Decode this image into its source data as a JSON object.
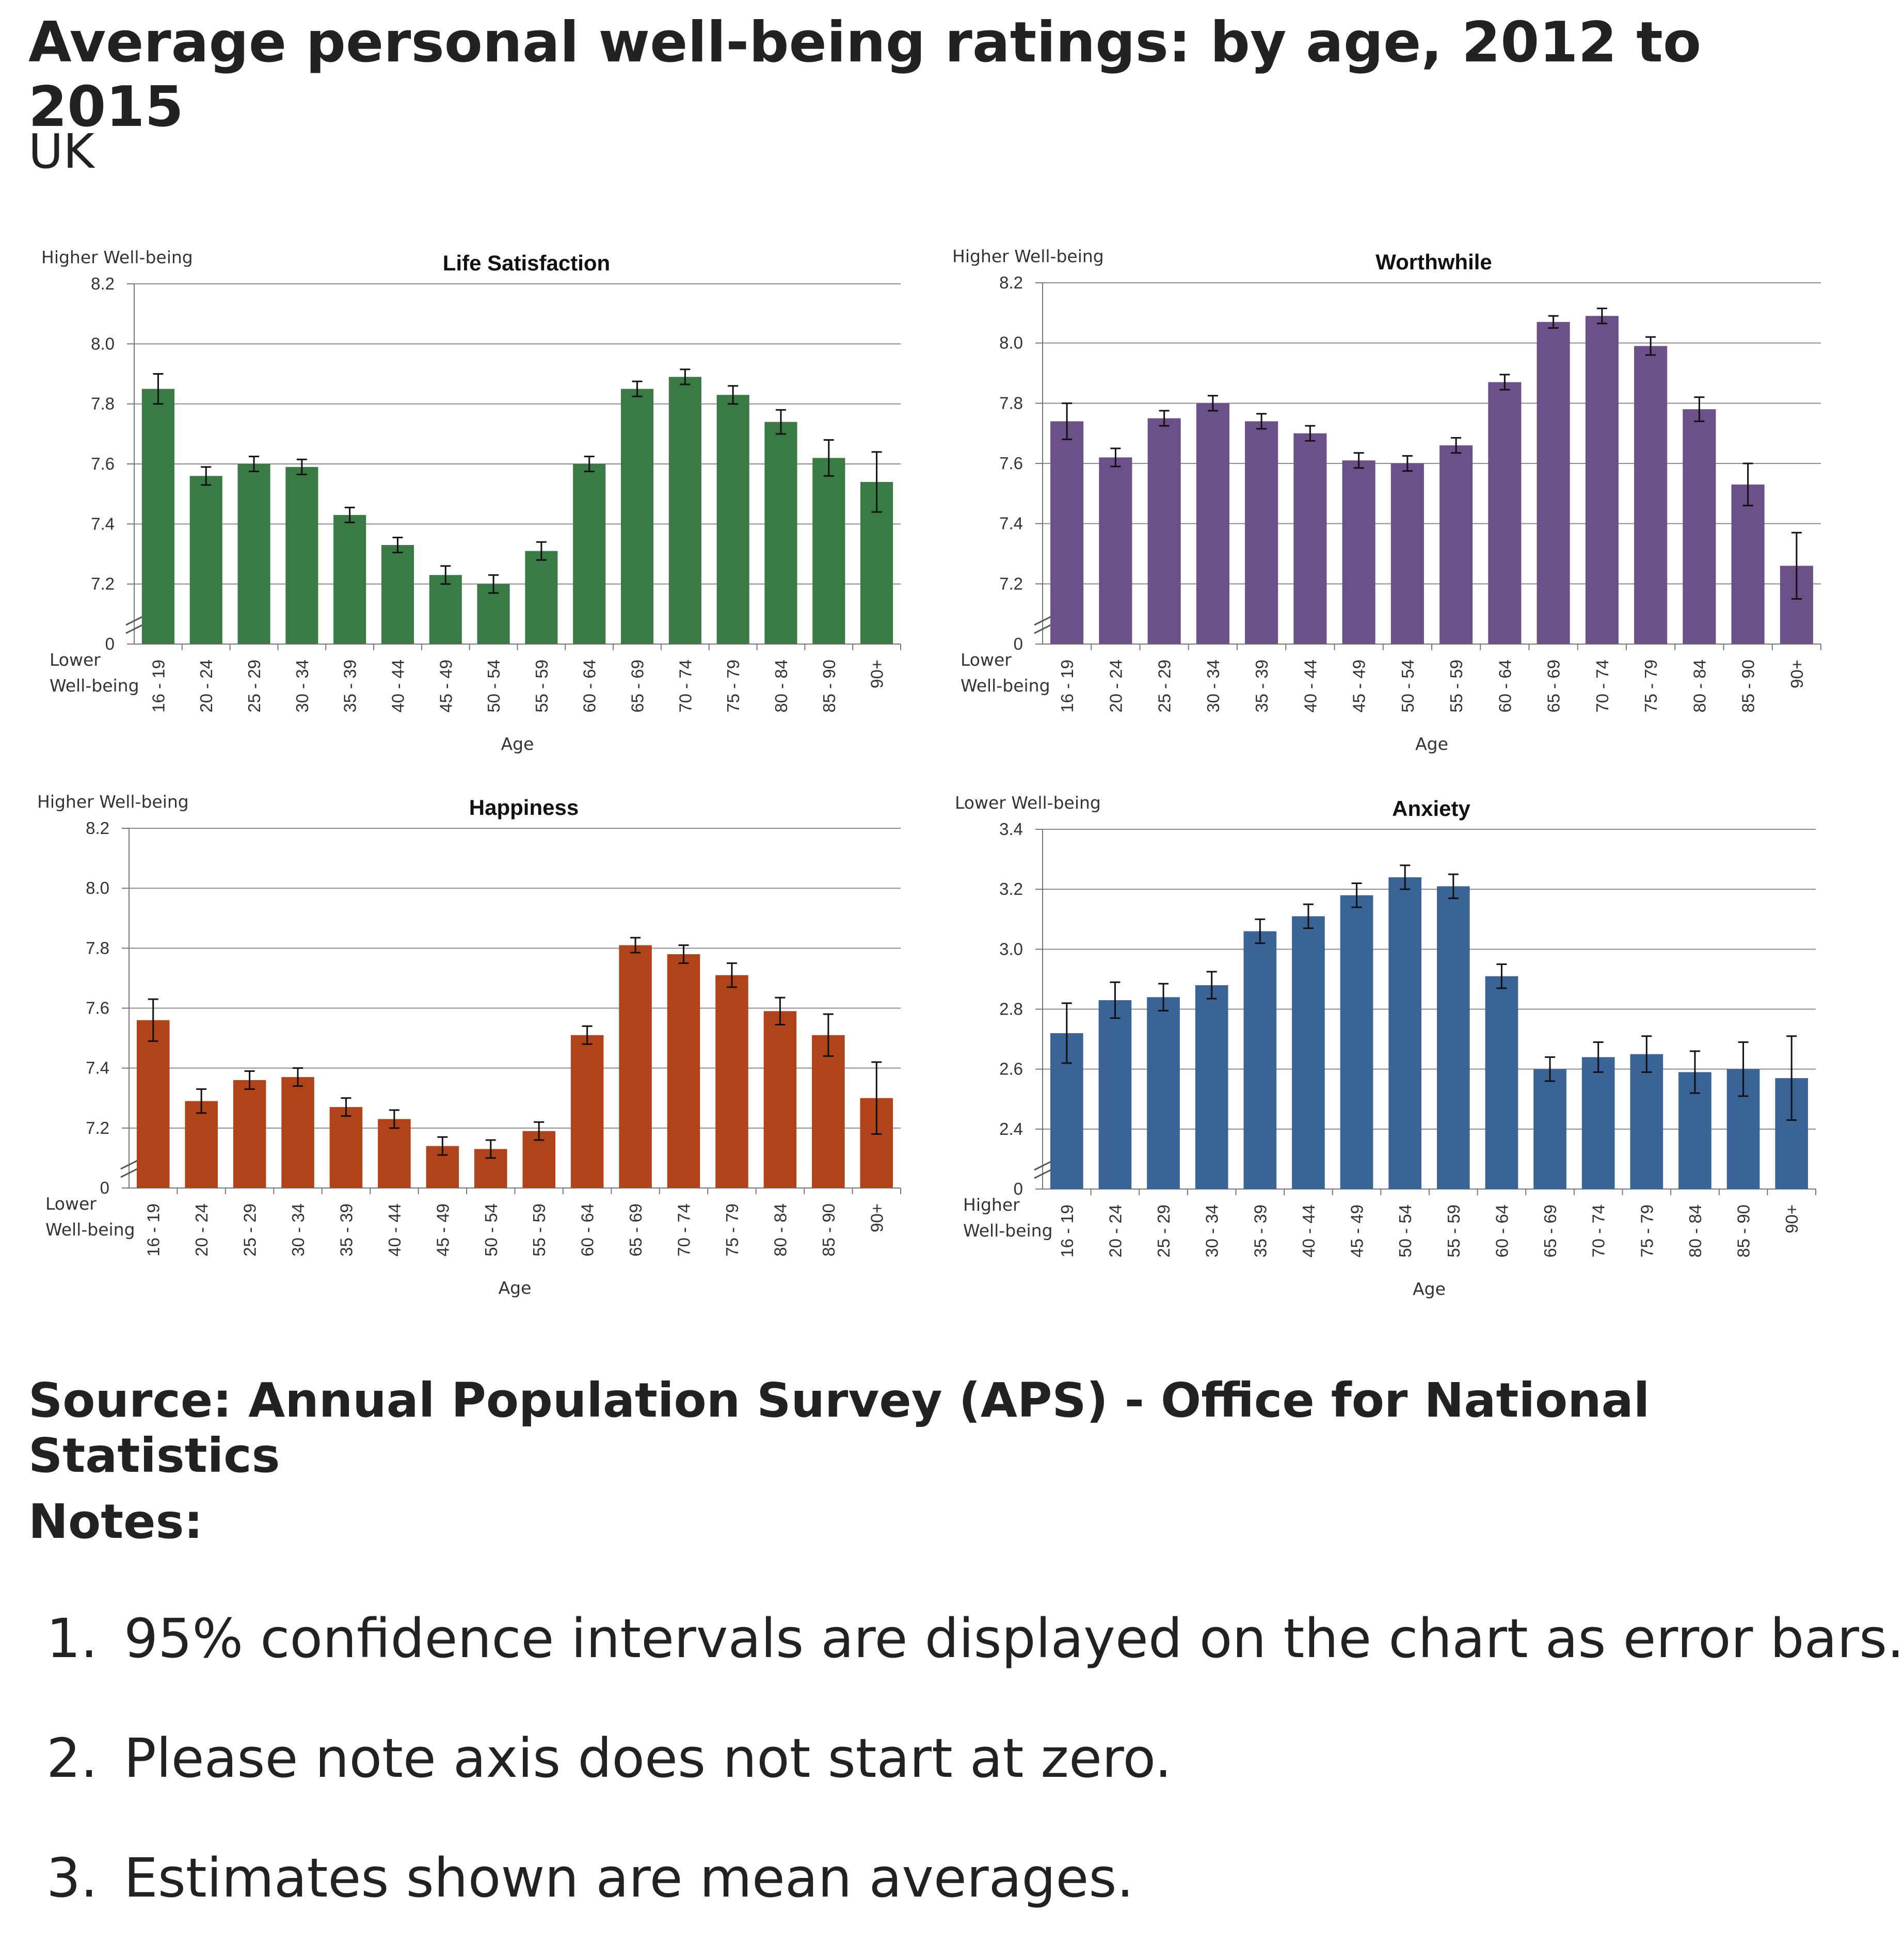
{
  "title": "Average personal well-being ratings: by age, 2012 to 2015",
  "subtitle": "UK",
  "source": "Source: Annual Population Survey (APS) - Office for National Statistics",
  "notes_heading": "Notes:",
  "notes": [
    {
      "num": "1.",
      "text": "95% confidence intervals are displayed on the chart as error bars."
    },
    {
      "num": "2.",
      "text": "Please note axis does not start at zero."
    },
    {
      "num": "3.",
      "text": "Estimates shown are mean averages."
    }
  ],
  "chart_data": [
    {
      "type": "bar",
      "title": "Life Satisfaction",
      "top_label": "Higher Well-being",
      "bottom_label": [
        "Lower",
        "Well-being"
      ],
      "xlabel": "Age",
      "color": "#3a7a44",
      "ylim": [
        7.0,
        8.2
      ],
      "yticks": [
        "8.2",
        "8.0",
        "7.8",
        "7.6",
        "7.4",
        "7.2",
        "0"
      ],
      "ytick_values": [
        8.2,
        8.0,
        7.8,
        7.6,
        7.4,
        7.2,
        7.0
      ],
      "axis_break": true,
      "categories": [
        "16 - 19",
        "20 - 24",
        "25 - 29",
        "30 - 34",
        "35 - 39",
        "40 - 44",
        "45 - 49",
        "50 - 54",
        "55 - 59",
        "60 - 64",
        "65 - 69",
        "70 - 74",
        "75 - 79",
        "80 - 84",
        "85 - 90",
        "90+"
      ],
      "values": [
        7.85,
        7.56,
        7.6,
        7.59,
        7.43,
        7.33,
        7.23,
        7.2,
        7.31,
        7.6,
        7.85,
        7.89,
        7.83,
        7.74,
        7.62,
        7.54
      ],
      "ci_half_width": [
        0.05,
        0.03,
        0.025,
        0.025,
        0.025,
        0.025,
        0.03,
        0.03,
        0.03,
        0.025,
        0.025,
        0.025,
        0.03,
        0.04,
        0.06,
        0.1
      ]
    },
    {
      "type": "bar",
      "title": "Worthwhile",
      "top_label": "Higher Well-being",
      "bottom_label": [
        "Lower",
        "Well-being"
      ],
      "xlabel": "Age",
      "color": "#6c5088",
      "ylim": [
        7.0,
        8.2
      ],
      "yticks": [
        "8.2",
        "8.0",
        "7.8",
        "7.6",
        "7.4",
        "7.2",
        "0"
      ],
      "ytick_values": [
        8.2,
        8.0,
        7.8,
        7.6,
        7.4,
        7.2,
        7.0
      ],
      "axis_break": true,
      "categories": [
        "16 - 19",
        "20 - 24",
        "25 - 29",
        "30 - 34",
        "35 - 39",
        "40 - 44",
        "45 - 49",
        "50 - 54",
        "55 - 59",
        "60 - 64",
        "65 - 69",
        "70 - 74",
        "75 - 79",
        "80 - 84",
        "85 - 90",
        "90+"
      ],
      "values": [
        7.74,
        7.62,
        7.75,
        7.8,
        7.74,
        7.7,
        7.61,
        7.6,
        7.66,
        7.87,
        8.07,
        8.09,
        7.99,
        7.78,
        7.53,
        7.26
      ],
      "ci_half_width": [
        0.06,
        0.03,
        0.025,
        0.025,
        0.025,
        0.025,
        0.025,
        0.025,
        0.025,
        0.025,
        0.02,
        0.025,
        0.03,
        0.04,
        0.07,
        0.11
      ]
    },
    {
      "type": "bar",
      "title": "Happiness",
      "top_label": "Higher Well-being",
      "bottom_label": [
        "Lower",
        "Well-being"
      ],
      "xlabel": "Age",
      "color": "#b04319",
      "ylim": [
        7.0,
        8.2
      ],
      "yticks": [
        "8.2",
        "8.0",
        "7.8",
        "7.6",
        "7.4",
        "7.2",
        "0"
      ],
      "ytick_values": [
        8.2,
        8.0,
        7.8,
        7.6,
        7.4,
        7.2,
        7.0
      ],
      "axis_break": true,
      "categories": [
        "16 - 19",
        "20 - 24",
        "25 - 29",
        "30 - 34",
        "35 - 39",
        "40 - 44",
        "45 - 49",
        "50 - 54",
        "55 - 59",
        "60 - 64",
        "65 - 69",
        "70 - 74",
        "75 - 79",
        "80 - 84",
        "85 - 90",
        "90+"
      ],
      "values": [
        7.56,
        7.29,
        7.36,
        7.37,
        7.27,
        7.23,
        7.14,
        7.13,
        7.19,
        7.51,
        7.81,
        7.78,
        7.71,
        7.59,
        7.51,
        7.3
      ],
      "ci_half_width": [
        0.07,
        0.04,
        0.03,
        0.03,
        0.03,
        0.03,
        0.03,
        0.03,
        0.03,
        0.03,
        0.025,
        0.03,
        0.04,
        0.045,
        0.07,
        0.12
      ]
    },
    {
      "type": "bar",
      "title": "Anxiety",
      "top_label": "Lower Well-being",
      "bottom_label": [
        "Higher",
        "Well-being"
      ],
      "xlabel": "Age",
      "color": "#3a6396",
      "ylim": [
        2.2,
        3.4
      ],
      "yticks": [
        "3.4",
        "3.2",
        "3.0",
        "2.8",
        "2.6",
        "2.4",
        "0"
      ],
      "ytick_values": [
        3.4,
        3.2,
        3.0,
        2.8,
        2.6,
        2.4,
        2.2
      ],
      "axis_break": true,
      "categories": [
        "16 - 19",
        "20 - 24",
        "25 - 29",
        "30 - 34",
        "35 - 39",
        "40 - 44",
        "45 - 49",
        "50 - 54",
        "55 - 59",
        "60 - 64",
        "65 - 69",
        "70 - 74",
        "75 - 79",
        "80 - 84",
        "85 - 90",
        "90+"
      ],
      "values": [
        2.72,
        2.83,
        2.84,
        2.88,
        3.06,
        3.11,
        3.18,
        3.24,
        3.21,
        2.91,
        2.6,
        2.64,
        2.65,
        2.59,
        2.6,
        2.57
      ],
      "ci_half_width": [
        0.1,
        0.06,
        0.045,
        0.045,
        0.04,
        0.04,
        0.04,
        0.04,
        0.04,
        0.04,
        0.04,
        0.05,
        0.06,
        0.07,
        0.09,
        0.14
      ]
    }
  ]
}
